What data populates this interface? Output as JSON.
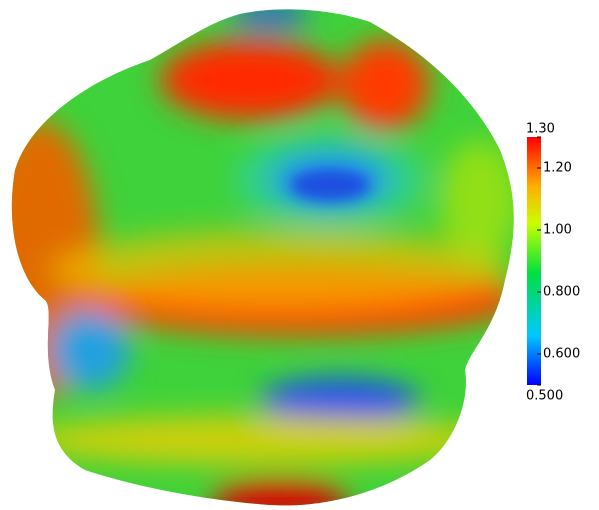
{
  "colorbar": {
    "range": [
      0.5,
      1.3
    ],
    "ticks": [
      {
        "value": 1.3,
        "label": "1.30"
      },
      {
        "value": 1.2,
        "label": "1.20"
      },
      {
        "value": 1.0,
        "label": "1.00"
      },
      {
        "value": 0.8,
        "label": "0.800"
      },
      {
        "value": 0.6,
        "label": "0.600"
      },
      {
        "value": 0.5,
        "label": "0.500"
      }
    ]
  }
}
